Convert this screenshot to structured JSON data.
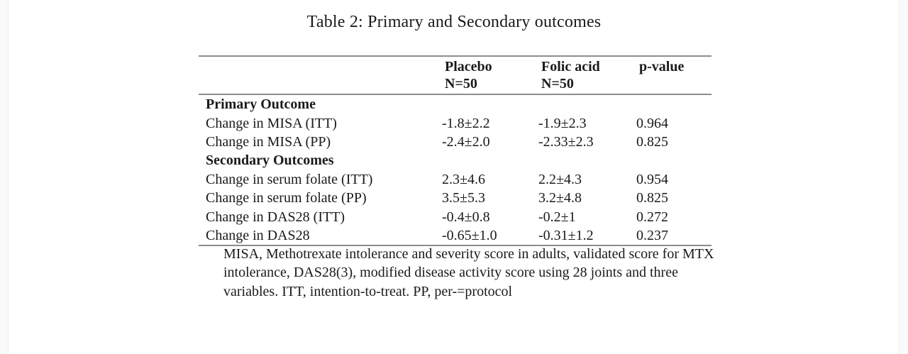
{
  "page": {
    "title": "Table 2: Primary and Secondary outcomes"
  },
  "table": {
    "columns": [
      {
        "key": "outcome",
        "label": "",
        "sub": ""
      },
      {
        "key": "placebo",
        "label": "Placebo",
        "sub": "N=50"
      },
      {
        "key": "folic-acid",
        "label": "Folic acid",
        "sub": "N=50"
      },
      {
        "key": "p-value",
        "label": "p-value",
        "sub": ""
      }
    ],
    "rows": [
      {
        "type": "section",
        "label": "Primary Outcome",
        "placebo": "",
        "folic_acid": "",
        "p_value": ""
      },
      {
        "type": "data",
        "label": "Change in MISA (ITT)",
        "placebo": "-1.8±2.2",
        "folic_acid": "-1.9±2.3",
        "p_value": "0.964"
      },
      {
        "type": "data",
        "label": "Change in MISA (PP)",
        "placebo": "-2.4±2.0",
        "folic_acid": "-2.33±2.3",
        "p_value": "0.825"
      },
      {
        "type": "section",
        "label": "Secondary Outcomes",
        "placebo": "",
        "folic_acid": "",
        "p_value": ""
      },
      {
        "type": "data",
        "label": "Change in serum folate (ITT)",
        "placebo": "2.3±4.6",
        "folic_acid": "2.2±4.3",
        "p_value": "0.954"
      },
      {
        "type": "data",
        "label": "Change in serum folate (PP)",
        "placebo": "3.5±5.3",
        "folic_acid": "3.2±4.8",
        "p_value": "0.825"
      },
      {
        "type": "data",
        "label": "Change in DAS28 (ITT)",
        "placebo": "-0.4±0.8",
        "folic_acid": "-0.2±1",
        "p_value": "0.272"
      },
      {
        "type": "data",
        "label": "Change in DAS28",
        "placebo": "-0.65±1.0",
        "folic_acid": "-0.31±1.2",
        "p_value": "0.237"
      }
    ],
    "footnote_lines": [
      "MISA, Methotrexate intolerance and severity score in adults, validated score for MTX",
      "intolerance, DAS28(3), modified disease activity score using 28 joints and three",
      "variables. ITT, intention-to-treat. PP, per-=protocol"
    ]
  },
  "colors": {
    "rule": "#8d8d8d",
    "text": "#1a1a1a",
    "page_margin": "#fafafa"
  }
}
